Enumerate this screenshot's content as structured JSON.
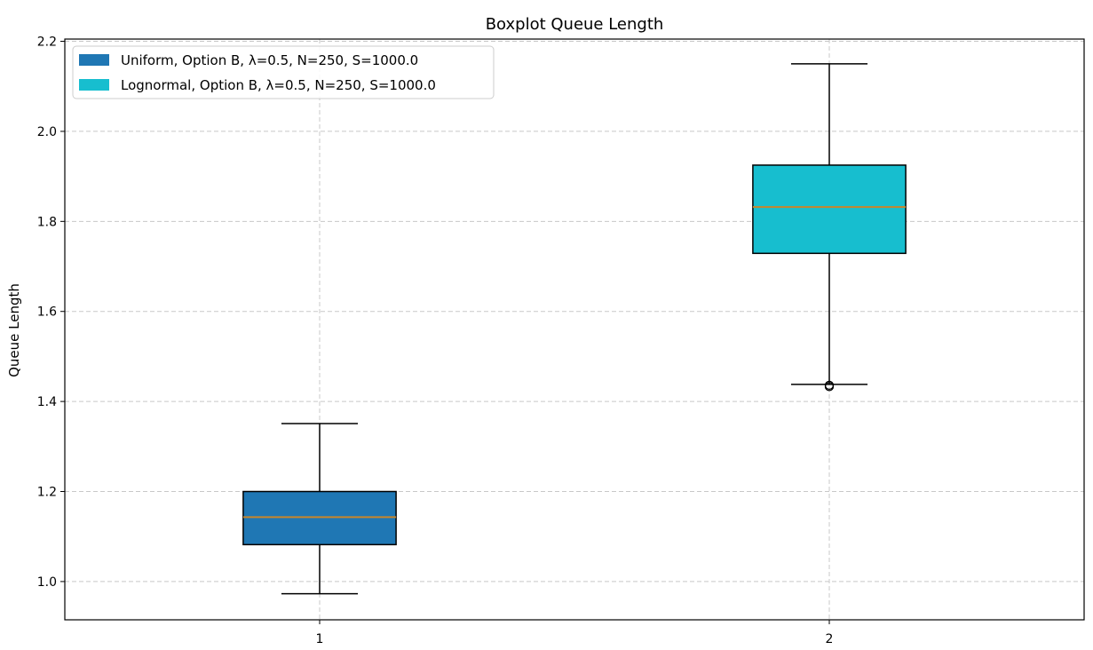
{
  "chart_data": {
    "type": "boxplot",
    "title": "Boxplot Queue Length",
    "xlabel": "",
    "ylabel": "Queue Length",
    "categories": [
      "1",
      "2"
    ],
    "ylim": [
      0.915,
      2.205
    ],
    "yticks": [
      "1.0",
      "1.2",
      "1.4",
      "1.6",
      "1.8",
      "2.0",
      "2.2"
    ],
    "grid": true,
    "legend_position": "top-left",
    "median_color": "#c8862a",
    "series": [
      {
        "name": "Uniform, Option B, λ=0.5, N=250, S=1000.0",
        "color": "#1f77b4",
        "whisker_low": 0.973,
        "q1": 1.082,
        "median": 1.143,
        "q3": 1.2,
        "whisker_high": 1.351,
        "outliers": []
      },
      {
        "name": "Lognormal, Option B, λ=0.5, N=250, S=1000.0",
        "color": "#17becf",
        "whisker_low": 1.438,
        "q1": 1.729,
        "median": 1.832,
        "q3": 1.925,
        "whisker_high": 2.15,
        "outliers": [
          1.433,
          1.436
        ]
      }
    ]
  }
}
